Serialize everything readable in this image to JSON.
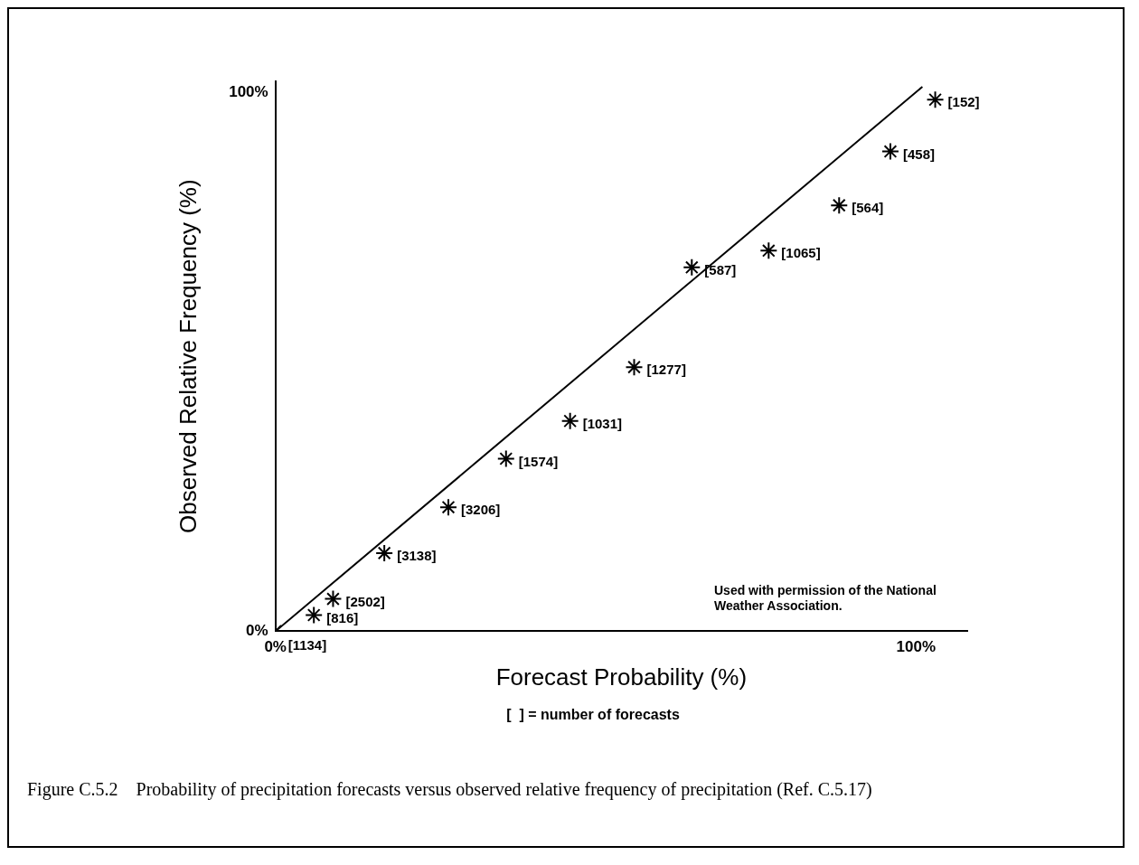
{
  "chart_data": {
    "type": "scatter",
    "xlabel": "Forecast Probability (%)",
    "ylabel": "Observed Relative Frequency (%)",
    "xlim": [
      0,
      108
    ],
    "ylim": [
      0,
      102
    ],
    "xticks": [
      {
        "value": 0,
        "label": "0%"
      },
      {
        "value": 100,
        "label": "100%"
      }
    ],
    "yticks": [
      {
        "value": 0,
        "label": "0%"
      },
      {
        "value": 100,
        "label": "100%"
      }
    ],
    "grid": false,
    "legend": false,
    "series": [
      {
        "type": "scatter",
        "color": "#000000",
        "marker": "cross",
        "x": [
          0,
          6,
          9,
          17,
          27,
          36,
          46,
          56,
          65,
          77,
          88,
          96,
          103
        ],
        "values": [
          0,
          3,
          6,
          14.5,
          23,
          32,
          39,
          49,
          67.5,
          70.6,
          79,
          89,
          98.6
        ]
      },
      {
        "type": "line",
        "color": "#000000",
        "marker": "none",
        "x": [
          0,
          101
        ],
        "values": [
          0,
          101
        ]
      }
    ],
    "annotations": [
      {
        "text": "[1134]",
        "x": 0,
        "y": 0
      },
      {
        "text": "[816]",
        "x": 6,
        "y": 3
      },
      {
        "text": "[2502]",
        "x": 9,
        "y": 6
      },
      {
        "text": "[3138]",
        "x": 17,
        "y": 14.5
      },
      {
        "text": "[3206]",
        "x": 27,
        "y": 23
      },
      {
        "text": "[1574]",
        "x": 36,
        "y": 32
      },
      {
        "text": "[1031]",
        "x": 46,
        "y": 39
      },
      {
        "text": "[1277]",
        "x": 56,
        "y": 49
      },
      {
        "text": "[587]",
        "x": 65,
        "y": 67.5
      },
      {
        "text": "[1065]",
        "x": 77,
        "y": 70.6
      },
      {
        "text": "[564]",
        "x": 88,
        "y": 79
      },
      {
        "text": "[458]",
        "x": 96,
        "y": 89
      },
      {
        "text": "[152]",
        "x": 103,
        "y": 98.6
      },
      "Used with permission of the National Weather Association.",
      "[  ] = number of forecasts",
      "Figure C.5.2    Probability of precipitation forecasts versus observed relative frequency of precipitation (Ref. C.5.17)"
    ]
  }
}
